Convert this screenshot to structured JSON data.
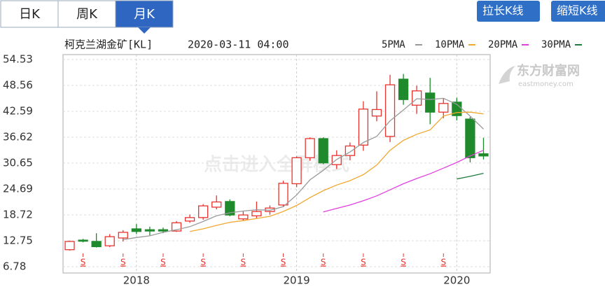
{
  "ui": {
    "tabs": [
      "日K",
      "周K",
      "月K"
    ],
    "active_tab": 2,
    "buttons": [
      "拉长K线",
      "缩短K线"
    ]
  },
  "chart_data": {
    "type": "candlestick",
    "title": "柯克兰湖金矿[KL]",
    "subtitle": "2020-03-11 04:00",
    "watermark": "点击进入全屏模式",
    "logo": "东方财富网",
    "logo_sub": "eastmoney.com",
    "categories": [
      null,
      null,
      null,
      null,
      null,
      "2018",
      null,
      null,
      null,
      null,
      null,
      null,
      null,
      null,
      null,
      null,
      null,
      "2019",
      null,
      null,
      null,
      null,
      null,
      null,
      null,
      null,
      null,
      null,
      null,
      "2020",
      null,
      null
    ],
    "open": [
      10.7,
      12.9,
      12.6,
      11.6,
      13.4,
      15.5,
      15.3,
      15.3,
      15.0,
      17.3,
      18.1,
      20.5,
      21.8,
      17.8,
      18.5,
      19.5,
      21.0,
      25.9,
      31.9,
      36.3,
      30.3,
      32.4,
      34.8,
      41.5,
      36.8,
      50.0,
      44.0,
      46.8,
      42.4,
      44.7,
      40.8,
      32.8
    ],
    "high": [
      12.8,
      13.2,
      14.5,
      14.3,
      15.2,
      16.6,
      16.0,
      15.8,
      17.3,
      18.8,
      21.2,
      23.2,
      22.3,
      19.5,
      21.8,
      20.9,
      26.6,
      32.2,
      36.6,
      36.6,
      33.6,
      35.4,
      44.9,
      47.2,
      51.0,
      51.2,
      48.5,
      50.3,
      45.5,
      45.7,
      41.3,
      36.5
    ],
    "low": [
      10.5,
      12.4,
      11.2,
      11.3,
      12.6,
      14.3,
      14.0,
      14.5,
      14.8,
      16.9,
      17.6,
      20.0,
      18.4,
      17.4,
      17.9,
      18.8,
      20.5,
      25.1,
      31.2,
      30.4,
      29.3,
      31.3,
      33.5,
      40.3,
      35.5,
      44.1,
      42.0,
      39.6,
      41.0,
      40.5,
      30.8,
      31.5
    ],
    "close": [
      12.6,
      12.7,
      11.4,
      13.7,
      14.7,
      14.9,
      15.0,
      15.0,
      16.9,
      18.1,
      20.8,
      21.7,
      18.7,
      18.7,
      19.5,
      20.3,
      26.0,
      31.9,
      36.3,
      30.7,
      32.4,
      34.6,
      43.1,
      43.0,
      48.7,
      45.3,
      47.3,
      42.4,
      44.4,
      41.6,
      31.9,
      32.3
    ],
    "up_color": "#e8332f",
    "down_color": "#1f8a2c",
    "series": [
      {
        "name": "5PMA",
        "color": "#9a9a9a",
        "values": [
          null,
          null,
          null,
          null,
          13.0,
          13.5,
          13.9,
          14.7,
          15.3,
          16.0,
          17.2,
          18.5,
          19.2,
          19.6,
          19.9,
          19.8,
          20.6,
          23.3,
          26.8,
          29.0,
          31.5,
          33.2,
          35.4,
          36.8,
          40.4,
          42.9,
          45.5,
          45.3,
          45.6,
          44.2,
          41.5,
          38.5
        ]
      },
      {
        "name": "10PMA",
        "color": "#f0a830",
        "values": [
          null,
          null,
          null,
          null,
          null,
          null,
          null,
          null,
          null,
          14.9,
          15.5,
          16.3,
          17.0,
          17.4,
          17.9,
          18.4,
          19.5,
          20.9,
          22.7,
          24.3,
          25.6,
          26.6,
          28.0,
          30.2,
          33.6,
          35.9,
          37.3,
          38.3,
          41.5,
          42.3,
          42.4,
          42.0
        ]
      },
      {
        "name": "20PMA",
        "color": "#e040e0",
        "values": [
          null,
          null,
          null,
          null,
          null,
          null,
          null,
          null,
          null,
          null,
          null,
          null,
          null,
          null,
          null,
          null,
          null,
          null,
          null,
          19.4,
          20.2,
          21.0,
          22.0,
          23.1,
          24.5,
          25.9,
          27.1,
          28.2,
          29.5,
          30.8,
          32.3,
          33.6
        ]
      },
      {
        "name": "30PMA",
        "color": "#1f7a3c",
        "values": [
          null,
          null,
          null,
          null,
          null,
          null,
          null,
          null,
          null,
          null,
          null,
          null,
          null,
          null,
          null,
          null,
          null,
          null,
          null,
          null,
          null,
          null,
          null,
          null,
          null,
          null,
          null,
          null,
          null,
          27.0,
          27.6,
          28.3
        ]
      }
    ],
    "event_labels": [
      null,
      "S",
      null,
      null,
      "S",
      null,
      null,
      "S",
      null,
      null,
      "S",
      null,
      null,
      "S",
      null,
      null,
      "S",
      null,
      null,
      "S",
      null,
      null,
      "S",
      null,
      null,
      "S",
      null,
      null,
      "S",
      null,
      null,
      null
    ],
    "ylim": [
      6.78,
      54.53
    ],
    "yticks": [
      6.78,
      12.75,
      18.72,
      24.69,
      30.65,
      36.62,
      42.59,
      48.56,
      54.53
    ],
    "grid": true
  }
}
